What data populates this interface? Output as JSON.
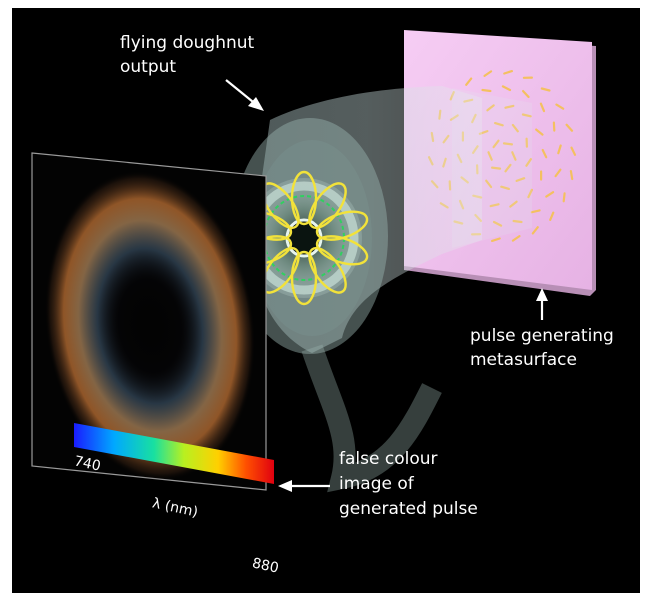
{
  "labels": {
    "doughnut_line1": "flying doughnut",
    "doughnut_line2": "output",
    "metasurface_line1": "pulse generating",
    "metasurface_line2": "metasurface",
    "image_line1": "false colour",
    "image_line2": "image of",
    "image_line3": "generated pulse"
  },
  "colorbar": {
    "min_label": "740",
    "max_label": "880",
    "axis_label": "λ (nm)"
  },
  "colors": {
    "background": "#000000",
    "metasurface": "#f0c0ee",
    "dash": "#f4c060",
    "ring": "#f2e23a",
    "arrow": "#ffffff"
  }
}
